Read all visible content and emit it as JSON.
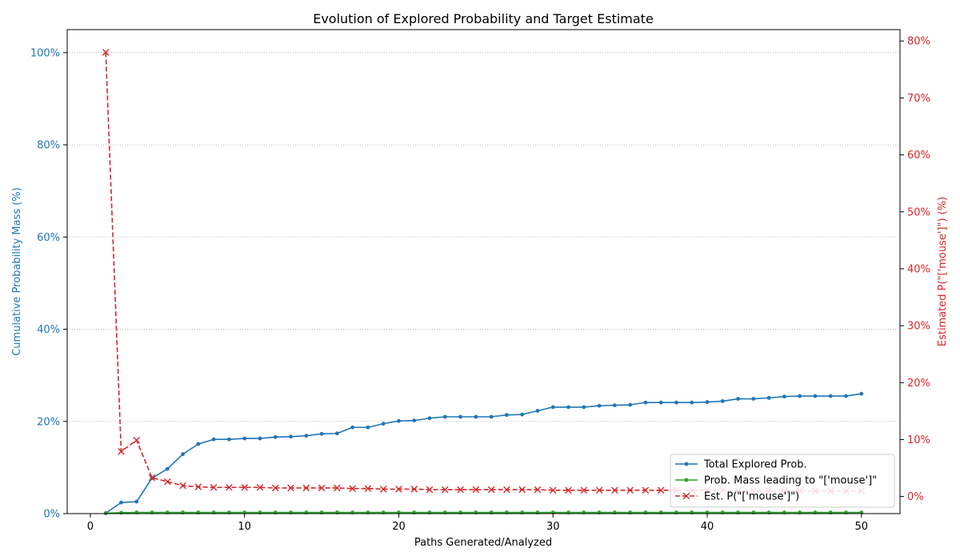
{
  "chart_data": {
    "type": "line",
    "title": "Evolution of Explored Probability and Target Estimate",
    "xlabel": "Paths Generated/Analyzed",
    "ylabel_left": "Cumulative Probability Mass (%)",
    "ylabel_right": "Estimated P(\"['mouse']\") (%)",
    "xlim": [
      -1.5,
      52.5
    ],
    "ylim_left": [
      0,
      105
    ],
    "ylim_right": [
      -3,
      82
    ],
    "xticks": [
      0,
      10,
      20,
      30,
      40,
      50
    ],
    "yticks_left": [
      0,
      20,
      40,
      60,
      80,
      100
    ],
    "yticks_right": [
      0,
      10,
      20,
      30,
      40,
      50,
      60,
      70,
      80
    ],
    "tick_suffix": "%",
    "grid": "horizontal-dotted",
    "legend_position": "bottom-right",
    "x": [
      1,
      2,
      3,
      4,
      5,
      6,
      7,
      8,
      9,
      10,
      11,
      12,
      13,
      14,
      15,
      16,
      17,
      18,
      19,
      20,
      21,
      22,
      23,
      24,
      25,
      26,
      27,
      28,
      29,
      30,
      31,
      32,
      33,
      34,
      35,
      36,
      37,
      38,
      39,
      40,
      41,
      42,
      43,
      44,
      45,
      46,
      47,
      48,
      49,
      50
    ],
    "series": [
      {
        "name": "Total Explored Prob.",
        "axis": "left",
        "color": "#1f77b4",
        "style": "solid",
        "marker": "dot",
        "values": [
          0.1,
          2.4,
          2.6,
          7.7,
          9.7,
          12.9,
          15.1,
          16.1,
          16.1,
          16.3,
          16.3,
          16.6,
          16.7,
          16.9,
          17.3,
          17.4,
          18.7,
          18.7,
          19.5,
          20.1,
          20.2,
          20.7,
          21.0,
          21.0,
          21.0,
          21.0,
          21.4,
          21.5,
          22.3,
          23.1,
          23.1,
          23.1,
          23.4,
          23.5,
          23.6,
          24.1,
          24.1,
          24.1,
          24.1,
          24.2,
          24.4,
          24.9,
          24.9,
          25.1,
          25.4,
          25.5,
          25.5,
          25.5,
          25.5,
          26.0
        ]
      },
      {
        "name": "Prob. Mass leading to \"['mouse']\"",
        "axis": "left",
        "color": "#2ca02c",
        "style": "solid",
        "marker": "dot",
        "values": [
          0.08,
          0.2,
          0.25,
          0.25,
          0.25,
          0.25,
          0.25,
          0.25,
          0.25,
          0.25,
          0.25,
          0.25,
          0.25,
          0.25,
          0.25,
          0.25,
          0.25,
          0.25,
          0.25,
          0.25,
          0.25,
          0.25,
          0.25,
          0.25,
          0.25,
          0.25,
          0.25,
          0.25,
          0.25,
          0.25,
          0.25,
          0.25,
          0.25,
          0.25,
          0.25,
          0.25,
          0.25,
          0.25,
          0.25,
          0.25,
          0.25,
          0.25,
          0.25,
          0.25,
          0.25,
          0.25,
          0.25,
          0.25,
          0.25,
          0.25
        ]
      },
      {
        "name": "Est. P(\"['mouse']\")",
        "axis": "right",
        "color": "#d62728",
        "style": "dashed",
        "marker": "x",
        "values": [
          78.0,
          7.9,
          9.9,
          3.3,
          2.6,
          1.9,
          1.7,
          1.6,
          1.6,
          1.6,
          1.6,
          1.5,
          1.5,
          1.5,
          1.5,
          1.5,
          1.4,
          1.4,
          1.3,
          1.3,
          1.3,
          1.2,
          1.2,
          1.2,
          1.2,
          1.2,
          1.2,
          1.2,
          1.2,
          1.1,
          1.1,
          1.1,
          1.1,
          1.1,
          1.1,
          1.1,
          1.1,
          1.1,
          1.1,
          1.1,
          1.1,
          1.0,
          1.0,
          1.0,
          1.0,
          1.0,
          1.0,
          1.0,
          1.0,
          1.0
        ]
      }
    ]
  }
}
